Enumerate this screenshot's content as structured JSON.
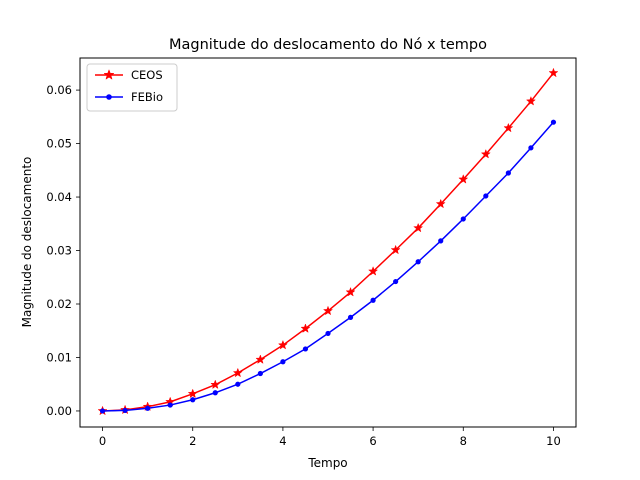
{
  "chart_data": {
    "type": "line",
    "title": "Magnitude do deslocamento do Nó x tempo",
    "xlabel": "Tempo",
    "ylabel": "Magnitude do deslocamento",
    "xlim": [
      -0.5,
      10.5
    ],
    "ylim": [
      -0.003,
      0.066
    ],
    "xticks": [
      0,
      2,
      4,
      6,
      8,
      10
    ],
    "xtick_labels": [
      "0",
      "2",
      "4",
      "6",
      "8",
      "10"
    ],
    "yticks": [
      0.0,
      0.01,
      0.02,
      0.03,
      0.04,
      0.05,
      0.06
    ],
    "ytick_labels": [
      "0.00",
      "0.01",
      "0.02",
      "0.03",
      "0.04",
      "0.05",
      "0.06"
    ],
    "grid": false,
    "legend_position": "upper-left",
    "x": [
      0,
      0.5,
      1,
      1.5,
      2,
      2.5,
      3,
      3.5,
      4,
      4.5,
      5,
      5.5,
      6,
      6.5,
      7,
      7.5,
      8,
      8.5,
      9,
      9.5,
      10
    ],
    "series": [
      {
        "name": "CEOS",
        "color": "#ff0000",
        "marker": "star",
        "values": [
          0.0,
          0.0002,
          0.0008,
          0.0017,
          0.0032,
          0.0049,
          0.0071,
          0.0096,
          0.0123,
          0.0154,
          0.0187,
          0.0222,
          0.0261,
          0.0301,
          0.0342,
          0.0387,
          0.0433,
          0.048,
          0.0529,
          0.0579,
          0.0632
        ]
      },
      {
        "name": "FEBio",
        "color": "#0000ff",
        "marker": "dot",
        "values": [
          0.0,
          0.0001,
          0.0005,
          0.0011,
          0.0021,
          0.0034,
          0.005,
          0.007,
          0.0092,
          0.0116,
          0.0145,
          0.0175,
          0.0207,
          0.0242,
          0.0279,
          0.0318,
          0.0359,
          0.0402,
          0.0445,
          0.0492,
          0.054
        ]
      }
    ]
  }
}
